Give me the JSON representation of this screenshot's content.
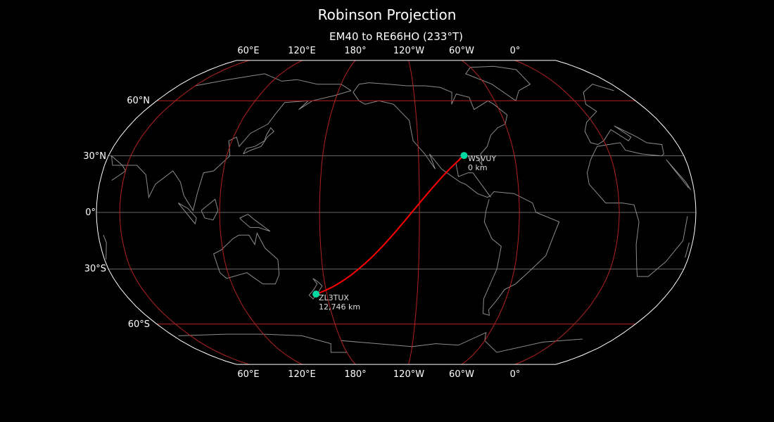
{
  "title": "Robinson Projection",
  "subtitle": "EM40 to RE66HO (233°T)",
  "map": {
    "projection": "Robinson",
    "central_longitude": -134,
    "colors": {
      "background": "#000000",
      "coastline": "#8c8c8c",
      "graticule": "#b22222",
      "path": "#ff0000",
      "station": "#00d9a3",
      "border": "#ffffff"
    },
    "top_lon_labels": [
      "60°E",
      "120°E",
      "180°",
      "120°W",
      "60°W",
      "0°"
    ],
    "bottom_lon_labels": [
      "60°E",
      "120°E",
      "180°",
      "120°W",
      "60°W",
      "0°"
    ],
    "lat_labels": [
      "60°N",
      "30°N",
      "0°",
      "30°S",
      "60°S"
    ]
  },
  "stations": [
    {
      "call": "W5VUY",
      "distance": "0 km",
      "lat": 30.2,
      "lon": -91.5
    },
    {
      "call": "ZL3TUX",
      "distance": "12,746 km",
      "lat": -43.4,
      "lon": 172.8
    }
  ]
}
